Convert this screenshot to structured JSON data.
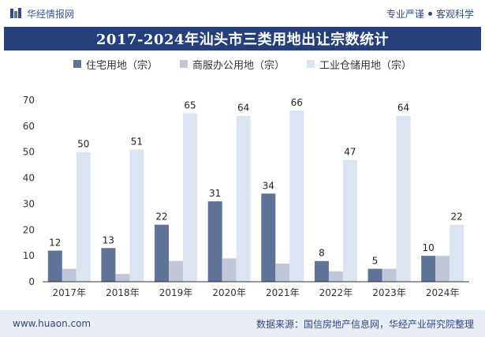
{
  "header": {
    "brand": "华经情报网",
    "tag1": "专业严谨",
    "tag2": "客观科学"
  },
  "footer": {
    "url": "www.huaon.com",
    "source": "数据来源：国信房地产信息网，华经产业研究院整理"
  },
  "colors": {
    "title_bg": "#253f7b",
    "series": [
      "#5f7298",
      "#c1c6d8",
      "#dde4f1"
    ]
  },
  "chart_data": {
    "type": "bar",
    "title": "2017-2024年汕头市三类用地出让宗数统计",
    "categories": [
      "2017年",
      "2018年",
      "2019年",
      "2020年",
      "2021年",
      "2022年",
      "2023年",
      "2024年"
    ],
    "series": [
      {
        "name": "住宅用地（宗）",
        "values": [
          12,
          13,
          22,
          31,
          34,
          8,
          5,
          10
        ],
        "labeled": true
      },
      {
        "name": "商服办公用地（宗）",
        "values": [
          5,
          3,
          8,
          9,
          7,
          4,
          5,
          10
        ],
        "labeled": false
      },
      {
        "name": "工业仓储用地（宗）",
        "values": [
          50,
          51,
          65,
          64,
          66,
          47,
          64,
          22
        ],
        "labeled": true
      }
    ],
    "ylim": [
      0,
      70
    ],
    "yticks": [
      "0",
      "10",
      "20",
      "30",
      "40",
      "50",
      "60",
      "70"
    ],
    "xlabel": "",
    "ylabel": "",
    "grid": false,
    "legend": "top"
  }
}
